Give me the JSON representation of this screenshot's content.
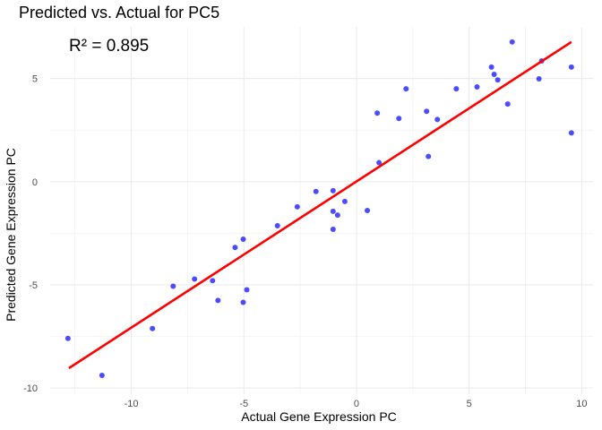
{
  "chart_data": {
    "type": "scatter",
    "title": "Predicted vs. Actual for PC5",
    "xlabel": "Actual Gene Expression PC",
    "ylabel": "Predicted Gene Expression PC",
    "annotation": "R² = 0.895",
    "xlim": [
      -13.6,
      10.5
    ],
    "ylim": [
      -10.3,
      7.5
    ],
    "x_ticks": [
      -10,
      -5,
      0,
      5,
      10
    ],
    "x_tick_labels": [
      "-10",
      "-5",
      "0",
      "5",
      "10"
    ],
    "y_ticks": [
      -10,
      -5,
      0,
      5
    ],
    "y_tick_labels": [
      "-10",
      "-5",
      "0",
      "5"
    ],
    "grid": true,
    "legend": "none",
    "point_color": "#0000ff",
    "line_color": "#ff0000",
    "points": [
      {
        "x": -12.81,
        "y": -7.6
      },
      {
        "x": -11.3,
        "y": -9.39
      },
      {
        "x": -9.06,
        "y": -7.12
      },
      {
        "x": -8.14,
        "y": -5.07
      },
      {
        "x": -7.19,
        "y": -4.72
      },
      {
        "x": -6.39,
        "y": -4.8
      },
      {
        "x": -6.15,
        "y": -5.76
      },
      {
        "x": -5.39,
        "y": -3.19
      },
      {
        "x": -5.03,
        "y": -2.79
      },
      {
        "x": -4.87,
        "y": -5.24
      },
      {
        "x": -5.03,
        "y": -5.85
      },
      {
        "x": -3.51,
        "y": -2.14
      },
      {
        "x": -2.63,
        "y": -1.22
      },
      {
        "x": -1.8,
        "y": -0.48
      },
      {
        "x": -1.04,
        "y": -0.44
      },
      {
        "x": -1.04,
        "y": -1.44
      },
      {
        "x": -0.84,
        "y": -1.62
      },
      {
        "x": -1.04,
        "y": -2.31
      },
      {
        "x": -0.52,
        "y": -0.96
      },
      {
        "x": 0.48,
        "y": -1.4
      },
      {
        "x": 1.0,
        "y": 0.92
      },
      {
        "x": 0.92,
        "y": 3.32
      },
      {
        "x": 1.88,
        "y": 3.06
      },
      {
        "x": 2.2,
        "y": 4.5
      },
      {
        "x": 3.11,
        "y": 3.41
      },
      {
        "x": 3.19,
        "y": 1.22
      },
      {
        "x": 3.59,
        "y": 3.01
      },
      {
        "x": 4.43,
        "y": 4.5
      },
      {
        "x": 5.35,
        "y": 4.59
      },
      {
        "x": 5.99,
        "y": 5.55
      },
      {
        "x": 6.11,
        "y": 5.2
      },
      {
        "x": 6.27,
        "y": 4.93
      },
      {
        "x": 6.71,
        "y": 3.76
      },
      {
        "x": 6.91,
        "y": 6.77
      },
      {
        "x": 8.1,
        "y": 4.98
      },
      {
        "x": 8.22,
        "y": 5.85
      },
      {
        "x": 9.54,
        "y": 5.55
      },
      {
        "x": 9.54,
        "y": 2.36
      }
    ],
    "fit_line": {
      "x_start": -12.77,
      "y_start": -9.04,
      "x_end": 9.54,
      "y_end": 6.77
    }
  }
}
